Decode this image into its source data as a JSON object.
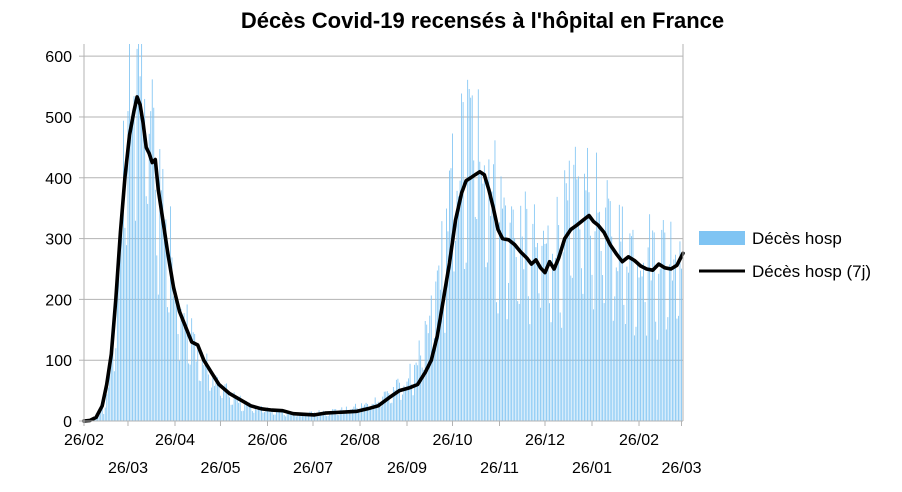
{
  "chart_data": {
    "type": "bar",
    "title": "Décès Covid-19 recensés à l'hôpital en France",
    "xlabel": "",
    "ylabel": "",
    "ylim": [
      0,
      620
    ],
    "yticks": [
      0,
      100,
      200,
      300,
      400,
      500,
      600
    ],
    "grid": true,
    "legend_position": "right",
    "colors": {
      "bars": "#7fc4f3",
      "line": "#000000",
      "grid": "#b3b3b3",
      "axis": "#b3b3b3"
    },
    "x_start": "2020-02-26",
    "x_end": "2021-03-27",
    "xticks_upper": [
      {
        "label": "26/02",
        "date": "2020-02-26"
      },
      {
        "label": "26/04",
        "date": "2020-04-26"
      },
      {
        "label": "26/06",
        "date": "2020-06-26"
      },
      {
        "label": "26/08",
        "date": "2020-08-26"
      },
      {
        "label": "26/10",
        "date": "2020-10-26"
      },
      {
        "label": "26/12",
        "date": "2020-12-26"
      },
      {
        "label": "26/02",
        "date": "2021-02-26"
      }
    ],
    "xticks_lower": [
      {
        "label": "26/03",
        "date": "2020-03-26"
      },
      {
        "label": "26/05",
        "date": "2020-05-26"
      },
      {
        "label": "26/07",
        "date": "2020-07-26"
      },
      {
        "label": "26/09",
        "date": "2020-09-26"
      },
      {
        "label": "26/11",
        "date": "2020-11-26"
      },
      {
        "label": "26/01",
        "date": "2021-01-26"
      },
      {
        "label": "26/03",
        "date": "2021-03-26"
      }
    ],
    "series": [
      {
        "name": "Décès hosp",
        "type": "bar",
        "approx_daily_trend": [
          [
            "2020-03-01",
            2
          ],
          [
            "2020-03-10",
            20
          ],
          [
            "2020-03-15",
            80
          ],
          [
            "2020-03-20",
            250
          ],
          [
            "2020-03-25",
            450
          ],
          [
            "2020-03-28",
            500
          ],
          [
            "2020-04-01",
            530
          ],
          [
            "2020-04-05",
            490
          ],
          [
            "2020-04-08",
            470
          ],
          [
            "2020-04-12",
            420
          ],
          [
            "2020-04-15",
            380
          ],
          [
            "2020-04-20",
            310
          ],
          [
            "2020-04-25",
            230
          ],
          [
            "2020-05-01",
            170
          ],
          [
            "2020-05-10",
            110
          ],
          [
            "2020-05-20",
            70
          ],
          [
            "2020-06-01",
            40
          ],
          [
            "2020-06-15",
            22
          ],
          [
            "2020-07-01",
            15
          ],
          [
            "2020-07-20",
            11
          ],
          [
            "2020-08-01",
            14
          ],
          [
            "2020-08-15",
            17
          ],
          [
            "2020-09-01",
            25
          ],
          [
            "2020-09-15",
            45
          ],
          [
            "2020-09-26",
            60
          ],
          [
            "2020-10-10",
            130
          ],
          [
            "2020-10-20",
            260
          ],
          [
            "2020-10-28",
            380
          ],
          [
            "2020-11-05",
            430
          ],
          [
            "2020-11-10",
            440
          ],
          [
            "2020-11-16",
            420
          ],
          [
            "2020-11-20",
            370
          ],
          [
            "2020-11-28",
            310
          ],
          [
            "2020-12-10",
            280
          ],
          [
            "2020-12-26",
            255
          ],
          [
            "2021-01-05",
            290
          ],
          [
            "2021-01-15",
            330
          ],
          [
            "2021-01-25",
            340
          ],
          [
            "2021-02-05",
            290
          ],
          [
            "2021-02-15",
            270
          ],
          [
            "2021-02-26",
            255
          ],
          [
            "2021-03-10",
            255
          ],
          [
            "2021-03-20",
            260
          ],
          [
            "2021-03-27",
            275
          ]
        ],
        "peak_value": 612,
        "peak_date": "2020-04-01"
      },
      {
        "name": "Décès hosp (7j)",
        "type": "line",
        "points": [
          [
            "2020-02-26",
            0
          ],
          [
            "2020-03-01",
            1
          ],
          [
            "2020-03-05",
            6
          ],
          [
            "2020-03-09",
            25
          ],
          [
            "2020-03-12",
            60
          ],
          [
            "2020-03-15",
            110
          ],
          [
            "2020-03-18",
            200
          ],
          [
            "2020-03-21",
            310
          ],
          [
            "2020-03-24",
            400
          ],
          [
            "2020-03-27",
            470
          ],
          [
            "2020-03-30",
            510
          ],
          [
            "2020-04-01",
            533
          ],
          [
            "2020-04-03",
            520
          ],
          [
            "2020-04-05",
            490
          ],
          [
            "2020-04-07",
            450
          ],
          [
            "2020-04-09",
            440
          ],
          [
            "2020-04-11",
            425
          ],
          [
            "2020-04-13",
            430
          ],
          [
            "2020-04-15",
            380
          ],
          [
            "2020-04-18",
            330
          ],
          [
            "2020-04-21",
            280
          ],
          [
            "2020-04-25",
            220
          ],
          [
            "2020-04-29",
            180
          ],
          [
            "2020-05-03",
            155
          ],
          [
            "2020-05-07",
            130
          ],
          [
            "2020-05-11",
            125
          ],
          [
            "2020-05-15",
            100
          ],
          [
            "2020-05-20",
            80
          ],
          [
            "2020-05-25",
            60
          ],
          [
            "2020-06-01",
            45
          ],
          [
            "2020-06-08",
            35
          ],
          [
            "2020-06-15",
            25
          ],
          [
            "2020-06-22",
            20
          ],
          [
            "2020-06-29",
            18
          ],
          [
            "2020-07-06",
            17
          ],
          [
            "2020-07-13",
            12
          ],
          [
            "2020-07-20",
            11
          ],
          [
            "2020-07-27",
            10
          ],
          [
            "2020-08-03",
            13
          ],
          [
            "2020-08-10",
            14
          ],
          [
            "2020-08-17",
            15
          ],
          [
            "2020-08-24",
            16
          ],
          [
            "2020-08-31",
            20
          ],
          [
            "2020-09-07",
            25
          ],
          [
            "2020-09-14",
            38
          ],
          [
            "2020-09-21",
            50
          ],
          [
            "2020-09-28",
            55
          ],
          [
            "2020-10-03",
            60
          ],
          [
            "2020-10-08",
            80
          ],
          [
            "2020-10-12",
            100
          ],
          [
            "2020-10-16",
            140
          ],
          [
            "2020-10-20",
            200
          ],
          [
            "2020-10-24",
            260
          ],
          [
            "2020-10-28",
            330
          ],
          [
            "2020-11-01",
            375
          ],
          [
            "2020-11-04",
            395
          ],
          [
            "2020-11-07",
            400
          ],
          [
            "2020-11-10",
            405
          ],
          [
            "2020-11-13",
            410
          ],
          [
            "2020-11-16",
            405
          ],
          [
            "2020-11-19",
            380
          ],
          [
            "2020-11-22",
            350
          ],
          [
            "2020-11-25",
            315
          ],
          [
            "2020-11-28",
            300
          ],
          [
            "2020-12-02",
            298
          ],
          [
            "2020-12-06",
            290
          ],
          [
            "2020-12-10",
            278
          ],
          [
            "2020-12-14",
            268
          ],
          [
            "2020-12-17",
            258
          ],
          [
            "2020-12-20",
            265
          ],
          [
            "2020-12-23",
            252
          ],
          [
            "2020-12-26",
            244
          ],
          [
            "2020-12-29",
            262
          ],
          [
            "2021-01-01",
            250
          ],
          [
            "2021-01-04",
            268
          ],
          [
            "2021-01-08",
            300
          ],
          [
            "2021-01-12",
            315
          ],
          [
            "2021-01-16",
            322
          ],
          [
            "2021-01-20",
            330
          ],
          [
            "2021-01-24",
            338
          ],
          [
            "2021-01-27",
            328
          ],
          [
            "2021-01-30",
            322
          ],
          [
            "2021-02-03",
            310
          ],
          [
            "2021-02-07",
            290
          ],
          [
            "2021-02-11",
            275
          ],
          [
            "2021-02-15",
            262
          ],
          [
            "2021-02-19",
            270
          ],
          [
            "2021-02-23",
            264
          ],
          [
            "2021-02-27",
            255
          ],
          [
            "2021-03-03",
            250
          ],
          [
            "2021-03-07",
            248
          ],
          [
            "2021-03-11",
            258
          ],
          [
            "2021-03-15",
            252
          ],
          [
            "2021-03-19",
            250
          ],
          [
            "2021-03-23",
            256
          ],
          [
            "2021-03-27",
            276
          ]
        ]
      }
    ],
    "legend": [
      {
        "label": "Décès hosp",
        "symbol": "bar"
      },
      {
        "label": "Décès hosp (7j)",
        "symbol": "line"
      }
    ]
  }
}
